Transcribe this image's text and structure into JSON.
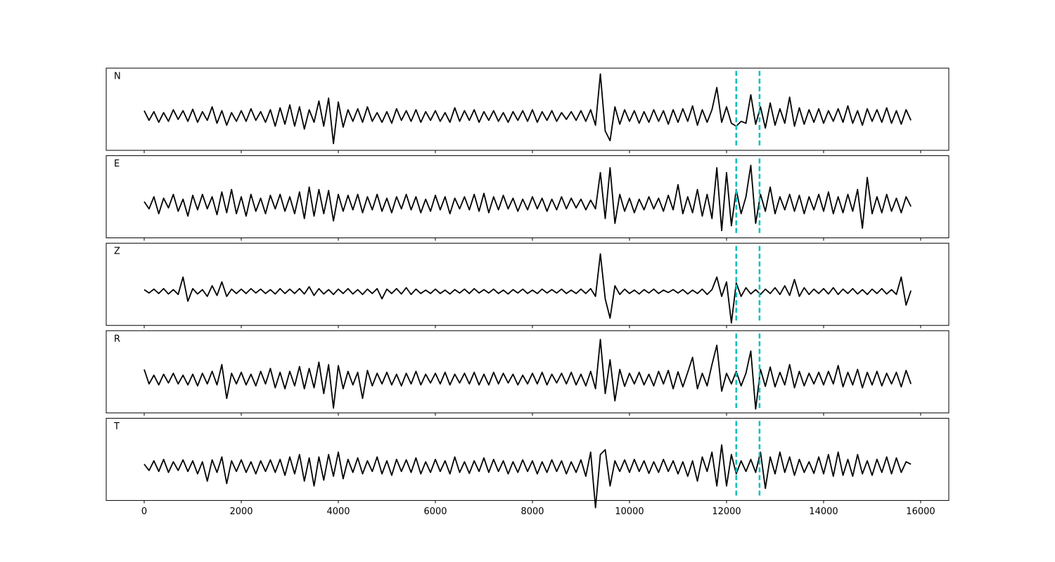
{
  "chart_data": {
    "type": "line",
    "layout": "stacked",
    "x": [
      0,
      100,
      200,
      300,
      400,
      500,
      600,
      700,
      800,
      900,
      1000,
      1100,
      1200,
      1300,
      1400,
      1500,
      1600,
      1700,
      1800,
      1900,
      2000,
      2100,
      2200,
      2300,
      2400,
      2500,
      2600,
      2700,
      2800,
      2900,
      3000,
      3100,
      3200,
      3300,
      3400,
      3500,
      3600,
      3700,
      3800,
      3900,
      4000,
      4100,
      4200,
      4300,
      4400,
      4500,
      4600,
      4700,
      4800,
      4900,
      5000,
      5100,
      5200,
      5300,
      5400,
      5500,
      5600,
      5700,
      5800,
      5900,
      6000,
      6100,
      6200,
      6300,
      6400,
      6500,
      6600,
      6700,
      6800,
      6900,
      7000,
      7100,
      7200,
      7300,
      7400,
      7500,
      7600,
      7700,
      7800,
      7900,
      8000,
      8100,
      8200,
      8300,
      8400,
      8500,
      8600,
      8700,
      8800,
      8900,
      9000,
      9100,
      9200,
      9300,
      9400,
      9500,
      9600,
      9700,
      9800,
      9900,
      10000,
      10100,
      10200,
      10300,
      10400,
      10500,
      10600,
      10700,
      10800,
      10900,
      11000,
      11100,
      11200,
      11300,
      11400,
      11500,
      11600,
      11700,
      11800,
      11900,
      12000,
      12100,
      12200,
      12300,
      12400,
      12500,
      12600,
      12700,
      12800,
      12900,
      13000,
      13100,
      13200,
      13300,
      13400,
      13500,
      13600,
      13700,
      13800,
      13900,
      14000,
      14100,
      14200,
      14300,
      14400,
      14500,
      14600,
      14700,
      14800,
      14900,
      15000,
      15100,
      15200,
      15300,
      15400,
      15500,
      15600,
      15700,
      15800
    ],
    "series": [
      {
        "name": "N",
        "color": "#000000",
        "values": [
          0.12,
          -0.08,
          0.1,
          -0.12,
          0.08,
          -0.1,
          0.14,
          -0.06,
          0.12,
          -0.1,
          0.15,
          -0.12,
          0.1,
          -0.08,
          0.2,
          -0.14,
          0.12,
          -0.18,
          0.08,
          -0.1,
          0.12,
          -0.1,
          0.16,
          -0.08,
          0.1,
          -0.12,
          0.14,
          -0.2,
          0.18,
          -0.16,
          0.24,
          -0.2,
          0.2,
          -0.26,
          0.14,
          -0.12,
          0.32,
          -0.2,
          0.38,
          -0.56,
          0.3,
          -0.22,
          0.14,
          -0.1,
          0.16,
          -0.12,
          0.2,
          -0.1,
          0.08,
          -0.12,
          0.1,
          -0.14,
          0.16,
          -0.08,
          0.12,
          -0.1,
          0.14,
          -0.12,
          0.1,
          -0.08,
          0.12,
          -0.1,
          0.08,
          -0.12,
          0.18,
          -0.1,
          0.12,
          -0.08,
          0.14,
          -0.12,
          0.1,
          -0.08,
          0.12,
          -0.1,
          0.08,
          -0.12,
          0.1,
          -0.08,
          0.12,
          -0.1,
          0.14,
          -0.12,
          0.1,
          -0.08,
          0.12,
          -0.1,
          0.08,
          -0.06,
          0.1,
          -0.08,
          0.12,
          -0.1,
          0.14,
          -0.18,
          0.88,
          -0.3,
          -0.5,
          0.2,
          -0.16,
          0.14,
          -0.1,
          0.12,
          -0.14,
          0.1,
          -0.12,
          0.14,
          -0.1,
          0.12,
          -0.16,
          0.14,
          -0.12,
          0.16,
          -0.1,
          0.22,
          -0.18,
          0.14,
          -0.12,
          0.14,
          0.6,
          -0.12,
          0.2,
          -0.14,
          -0.2,
          -0.1,
          -0.14,
          0.45,
          -0.16,
          0.2,
          -0.24,
          0.28,
          -0.18,
          0.16,
          -0.14,
          0.4,
          -0.2,
          0.18,
          -0.16,
          0.14,
          -0.12,
          0.16,
          -0.14,
          0.12,
          -0.1,
          0.16,
          -0.12,
          0.22,
          -0.14,
          0.12,
          -0.18,
          0.16,
          -0.1,
          0.14,
          -0.12,
          0.18,
          -0.14,
          0.12,
          -0.16,
          0.14,
          -0.08
        ]
      },
      {
        "name": "E",
        "color": "#000000",
        "values": [
          0.05,
          -0.1,
          0.15,
          -0.2,
          0.12,
          -0.08,
          0.2,
          -0.15,
          0.1,
          -0.25,
          0.18,
          -0.12,
          0.2,
          -0.1,
          0.15,
          -0.22,
          0.25,
          -0.18,
          0.3,
          -0.2,
          0.15,
          -0.25,
          0.2,
          -0.15,
          0.12,
          -0.2,
          0.18,
          -0.1,
          0.2,
          -0.15,
          0.15,
          -0.2,
          0.25,
          -0.3,
          0.35,
          -0.25,
          0.3,
          -0.2,
          0.28,
          -0.35,
          0.2,
          -0.15,
          0.18,
          -0.12,
          0.2,
          -0.18,
          0.15,
          -0.12,
          0.2,
          -0.15,
          0.12,
          -0.18,
          0.15,
          -0.1,
          0.2,
          -0.12,
          0.15,
          -0.18,
          0.1,
          -0.15,
          0.18,
          -0.12,
          0.15,
          -0.2,
          0.12,
          -0.1,
          0.15,
          -0.12,
          0.2,
          -0.15,
          0.22,
          -0.18,
          0.15,
          -0.12,
          0.18,
          -0.1,
          0.12,
          -0.15,
          0.1,
          -0.12,
          0.15,
          -0.1,
          0.12,
          -0.15,
          0.1,
          -0.12,
          0.15,
          -0.1,
          0.12,
          -0.08,
          0.1,
          -0.12,
          0.08,
          -0.1,
          0.65,
          -0.3,
          0.75,
          -0.4,
          0.2,
          -0.15,
          0.12,
          -0.18,
          0.1,
          -0.12,
          0.15,
          -0.1,
          0.12,
          -0.15,
          0.18,
          -0.12,
          0.4,
          -0.2,
          0.15,
          -0.18,
          0.3,
          -0.25,
          0.2,
          -0.3,
          0.75,
          -0.55,
          0.65,
          -0.45,
          0.3,
          -0.2,
          0.15,
          0.8,
          -0.4,
          0.2,
          -0.15,
          0.35,
          -0.2,
          0.15,
          -0.12,
          0.2,
          -0.15,
          0.18,
          -0.2,
          0.15,
          -0.12,
          0.2,
          -0.15,
          0.25,
          -0.2,
          0.15,
          -0.18,
          0.2,
          -0.15,
          0.3,
          -0.5,
          0.55,
          -0.2,
          0.15,
          -0.18,
          0.2,
          -0.15,
          0.12,
          -0.18,
          0.15,
          -0.05
        ]
      },
      {
        "name": "Z",
        "color": "#000000",
        "values": [
          0.04,
          -0.03,
          0.05,
          -0.04,
          0.06,
          -0.05,
          0.04,
          -0.06,
          0.3,
          -0.2,
          0.06,
          -0.05,
          0.04,
          -0.1,
          0.12,
          -0.08,
          0.2,
          -0.1,
          0.05,
          -0.04,
          0.05,
          -0.04,
          0.06,
          -0.03,
          0.05,
          -0.04,
          0.04,
          -0.05,
          0.06,
          -0.04,
          0.05,
          -0.04,
          0.06,
          -0.05,
          0.1,
          -0.08,
          0.06,
          -0.05,
          0.04,
          -0.06,
          0.05,
          -0.04,
          0.06,
          -0.05,
          0.04,
          -0.06,
          0.05,
          -0.04,
          0.06,
          -0.15,
          0.05,
          -0.04,
          0.06,
          -0.05,
          0.08,
          -0.06,
          0.05,
          -0.04,
          0.03,
          -0.04,
          0.05,
          -0.04,
          0.03,
          -0.05,
          0.04,
          -0.03,
          0.05,
          -0.04,
          0.06,
          -0.03,
          0.04,
          -0.03,
          0.05,
          -0.04,
          0.03,
          -0.05,
          0.04,
          -0.03,
          0.05,
          -0.04,
          0.03,
          -0.04,
          0.05,
          -0.03,
          0.04,
          -0.03,
          0.05,
          -0.04,
          0.03,
          -0.04,
          0.05,
          -0.04,
          0.06,
          -0.1,
          0.78,
          -0.15,
          -0.55,
          0.12,
          -0.06,
          0.05,
          -0.04,
          0.03,
          -0.05,
          0.04,
          -0.03,
          0.05,
          -0.04,
          0.03,
          -0.02,
          0.04,
          -0.03,
          0.04,
          -0.05,
          0.03,
          -0.04,
          0.05,
          -0.06,
          0.04,
          0.3,
          -0.1,
          0.2,
          -0.65,
          0.18,
          -0.1,
          0.08,
          -0.05,
          0.04,
          -0.06,
          0.05,
          -0.04,
          0.08,
          -0.06,
          0.12,
          -0.08,
          0.25,
          -0.1,
          0.08,
          -0.06,
          0.05,
          -0.04,
          0.06,
          -0.05,
          0.08,
          -0.06,
          0.05,
          -0.04,
          0.06,
          -0.05,
          0.04,
          -0.06,
          0.05,
          -0.04,
          0.06,
          -0.05,
          0.04,
          -0.06,
          0.3,
          -0.28,
          0.02
        ]
      },
      {
        "name": "R",
        "color": "#000000",
        "values": [
          0.2,
          -0.1,
          0.08,
          -0.12,
          0.1,
          -0.08,
          0.12,
          -0.1,
          0.08,
          -0.12,
          0.1,
          -0.14,
          0.12,
          -0.1,
          0.16,
          -0.12,
          0.3,
          -0.4,
          0.12,
          -0.1,
          0.14,
          -0.12,
          0.1,
          -0.14,
          0.16,
          -0.1,
          0.22,
          -0.18,
          0.14,
          -0.2,
          0.16,
          -0.14,
          0.26,
          -0.2,
          0.22,
          -0.18,
          0.35,
          -0.3,
          0.3,
          -0.6,
          0.28,
          -0.2,
          0.16,
          -0.12,
          0.14,
          -0.4,
          0.18,
          -0.14,
          0.12,
          -0.1,
          0.14,
          -0.12,
          0.1,
          -0.14,
          0.12,
          -0.1,
          0.16,
          -0.12,
          0.1,
          -0.08,
          0.12,
          -0.1,
          0.14,
          -0.12,
          0.1,
          -0.08,
          0.12,
          -0.1,
          0.14,
          -0.12,
          0.1,
          -0.12,
          0.14,
          -0.1,
          0.12,
          -0.08,
          0.1,
          -0.12,
          0.08,
          -0.1,
          0.12,
          -0.1,
          0.14,
          -0.12,
          0.1,
          -0.08,
          0.12,
          -0.1,
          0.14,
          -0.12,
          0.1,
          -0.14,
          0.16,
          -0.2,
          0.82,
          -0.3,
          0.4,
          -0.45,
          0.2,
          -0.15,
          0.12,
          -0.1,
          0.14,
          -0.12,
          0.1,
          -0.14,
          0.16,
          -0.1,
          0.18,
          -0.2,
          0.15,
          -0.16,
          0.14,
          0.45,
          -0.2,
          0.12,
          -0.14,
          0.3,
          0.7,
          -0.25,
          0.12,
          -0.1,
          0.16,
          -0.14,
          0.12,
          0.58,
          -0.62,
          0.2,
          -0.15,
          0.25,
          -0.16,
          0.14,
          -0.12,
          0.3,
          -0.18,
          0.16,
          -0.14,
          0.12,
          -0.1,
          0.14,
          -0.12,
          0.16,
          -0.1,
          0.28,
          -0.16,
          0.14,
          -0.12,
          0.2,
          -0.18,
          0.14,
          -0.12,
          0.16,
          -0.14,
          0.12,
          -0.1,
          0.14,
          -0.16,
          0.18,
          -0.1
        ]
      },
      {
        "name": "T",
        "color": "#000000",
        "values": [
          0.05,
          -0.08,
          0.12,
          -0.1,
          0.15,
          -0.12,
          0.1,
          -0.08,
          0.14,
          -0.1,
          0.12,
          -0.15,
          0.1,
          -0.3,
          0.14,
          -0.12,
          0.2,
          -0.35,
          0.12,
          -0.1,
          0.14,
          -0.12,
          0.1,
          -0.15,
          0.12,
          -0.1,
          0.14,
          -0.12,
          0.15,
          -0.18,
          0.2,
          -0.15,
          0.25,
          -0.3,
          0.18,
          -0.4,
          0.2,
          -0.28,
          0.25,
          -0.2,
          0.3,
          -0.25,
          0.15,
          -0.12,
          0.18,
          -0.15,
          0.12,
          -0.1,
          0.2,
          -0.15,
          0.12,
          -0.18,
          0.15,
          -0.1,
          0.14,
          -0.12,
          0.18,
          -0.15,
          0.1,
          -0.12,
          0.15,
          -0.1,
          0.12,
          -0.15,
          0.2,
          -0.12,
          0.1,
          -0.14,
          0.12,
          -0.1,
          0.18,
          -0.12,
          0.15,
          -0.1,
          0.12,
          -0.15,
          0.1,
          -0.12,
          0.14,
          -0.1,
          0.12,
          -0.15,
          0.1,
          -0.12,
          0.14,
          -0.1,
          0.12,
          -0.15,
          0.1,
          -0.12,
          0.14,
          -0.2,
          0.3,
          -0.85,
          0.25,
          0.35,
          -0.4,
          0.12,
          -0.1,
          0.14,
          -0.12,
          0.15,
          -0.1,
          0.12,
          -0.14,
          0.1,
          -0.12,
          0.15,
          -0.1,
          0.12,
          -0.15,
          0.1,
          -0.2,
          0.12,
          -0.3,
          0.2,
          -0.1,
          0.3,
          -0.4,
          0.45,
          -0.4,
          0.25,
          -0.15,
          0.12,
          -0.1,
          0.15,
          -0.12,
          0.3,
          -0.45,
          0.2,
          -0.15,
          0.3,
          -0.12,
          0.2,
          -0.18,
          0.15,
          -0.12,
          0.1,
          -0.14,
          0.2,
          -0.15,
          0.25,
          -0.2,
          0.3,
          -0.18,
          0.15,
          -0.2,
          0.25,
          -0.15,
          0.12,
          -0.18,
          0.15,
          -0.12,
          0.2,
          -0.15,
          0.18,
          -0.12,
          0.1,
          0.05
        ]
      }
    ],
    "vlines": [
      12200,
      12680
    ],
    "vline_color": "#00bfbf",
    "xlim": [
      -783,
      16580
    ],
    "xticks": [
      0,
      2000,
      4000,
      6000,
      8000,
      10000,
      12000,
      14000,
      16000
    ],
    "ylim": [
      -0.7,
      1.0
    ],
    "grid": false
  }
}
